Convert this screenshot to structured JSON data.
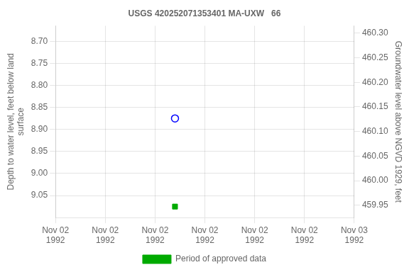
{
  "chart_data": {
    "type": "scatter",
    "title": "USGS 420252071353401 MA-UXW   66",
    "y_label": "Depth to water level, feet below land\nsurface",
    "y2_label": "Groundwater level above NGVD 1929, feet",
    "xlim": [
      0,
      1.25
    ],
    "xticks": [
      {
        "value": 0,
        "label": "Nov 02\n1992"
      },
      {
        "value": 0.20833333333333334,
        "label": "Nov 02\n1992"
      },
      {
        "value": 0.4166666666666667,
        "label": "Nov 02\n1992"
      },
      {
        "value": 0.625,
        "label": "Nov 02\n1992"
      },
      {
        "value": 0.8333333333333334,
        "label": "Nov 02\n1992"
      },
      {
        "value": 1.0416666666666667,
        "label": "Nov 02\n1992"
      },
      {
        "value": 1.25,
        "label": "Nov 03\n1992"
      }
    ],
    "ylim": [
      9.1,
      8.665
    ],
    "yticks": [
      {
        "value": 8.7,
        "label": "8.70"
      },
      8.75,
      {
        "value": 8.8,
        "label": "8.80"
      },
      8.85,
      {
        "value": 8.9,
        "label": "8.90"
      },
      8.95,
      {
        "value": 9.0,
        "label": "9.00"
      },
      9.05
    ],
    "y2lim": [
      459.925,
      460.315
    ],
    "y2ticks": [
      {
        "value": 460.3,
        "label": "460.30"
      },
      460.25,
      {
        "value": 460.2,
        "label": "460.20"
      },
      460.15,
      {
        "value": 460.1,
        "label": "460.10"
      },
      460.05,
      {
        "value": 460.0,
        "label": "460.00"
      },
      459.95
    ],
    "grid": true,
    "legend": "bottom",
    "series": [
      {
        "color": "blue",
        "marker": "circle_open",
        "x": [
          0.5
        ],
        "values": [
          8.875
        ]
      },
      {
        "name": "Period of approved data",
        "color": "#00aa00",
        "marker": "square",
        "x": [
          0.5
        ],
        "values": [
          9.075
        ]
      }
    ]
  }
}
